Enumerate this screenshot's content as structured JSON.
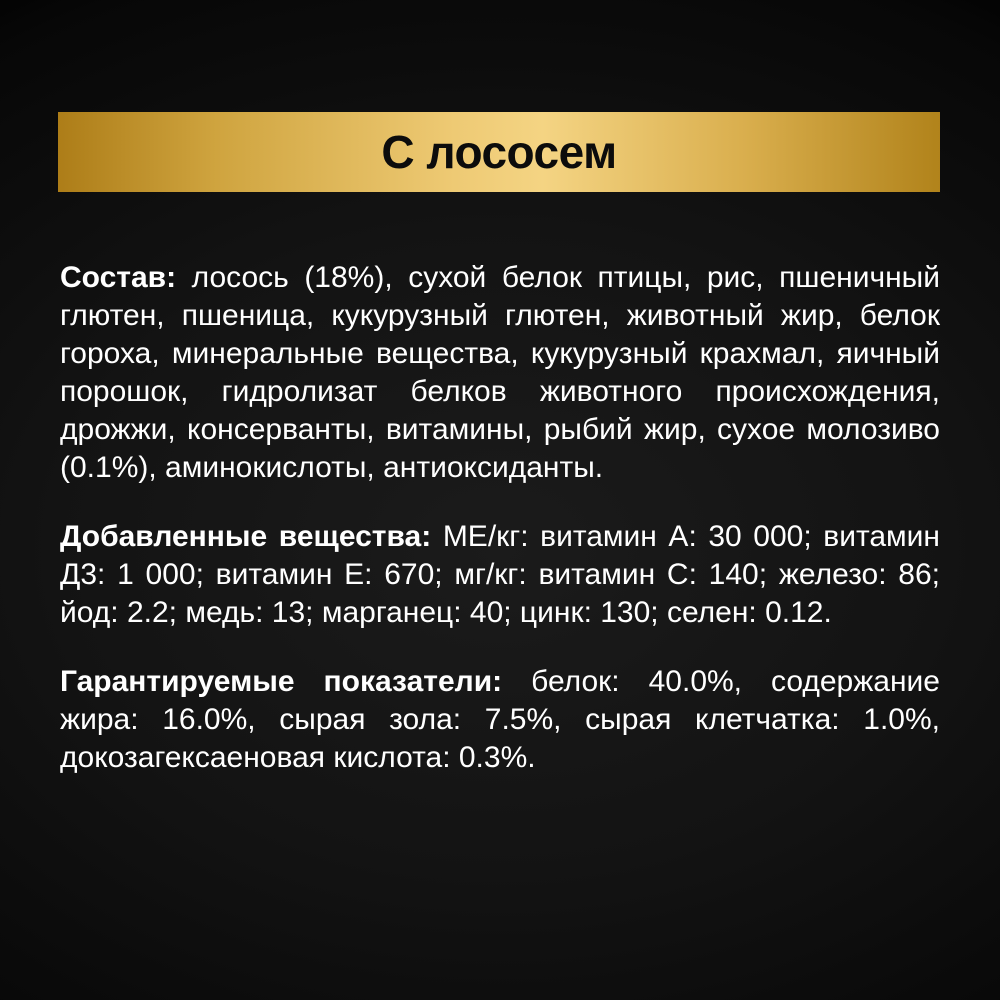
{
  "banner": {
    "title": "С лососем",
    "gold_gradient_start": "#ad7d18",
    "gold_gradient_mid": "#f4d483",
    "gold_gradient_end": "#b1831b",
    "text_color": "#0c0c0c"
  },
  "sections": [
    {
      "label": "Состав:",
      "text": "лосось (18%), сухой белок птицы, рис, пшеничный глютен, пшеница, кукурузный глютен, животный жир, белок гороха, минеральные вещества, кукурузный крахмал, яичный порошок, гидролизат белков животного происхождения, дрожжи, консерванты, витамины, рыбий жир, сухое молозиво (0.1%), аминокислоты, антиоксиданты."
    },
    {
      "label": "Добавленные вещества:",
      "text": "МЕ/кг: витамин А: 30 000; витамин Д3: 1 000; витамин Е: 670; мг/кг: витамин С: 140; железо: 86; йод: 2.2; медь: 13; марганец: 40; цинк: 130; селен: 0.12."
    },
    {
      "label": "Гарантируемые показатели:",
      "text": "белок: 40.0%, содержание жира: 16.0%, сырая зола: 7.5%, сырая клетчатка: 1.0%, докозагексаеновая кислота: 0.3%."
    }
  ],
  "theme": {
    "background": "#0d0d0d",
    "body_text_color": "#ffffff"
  }
}
